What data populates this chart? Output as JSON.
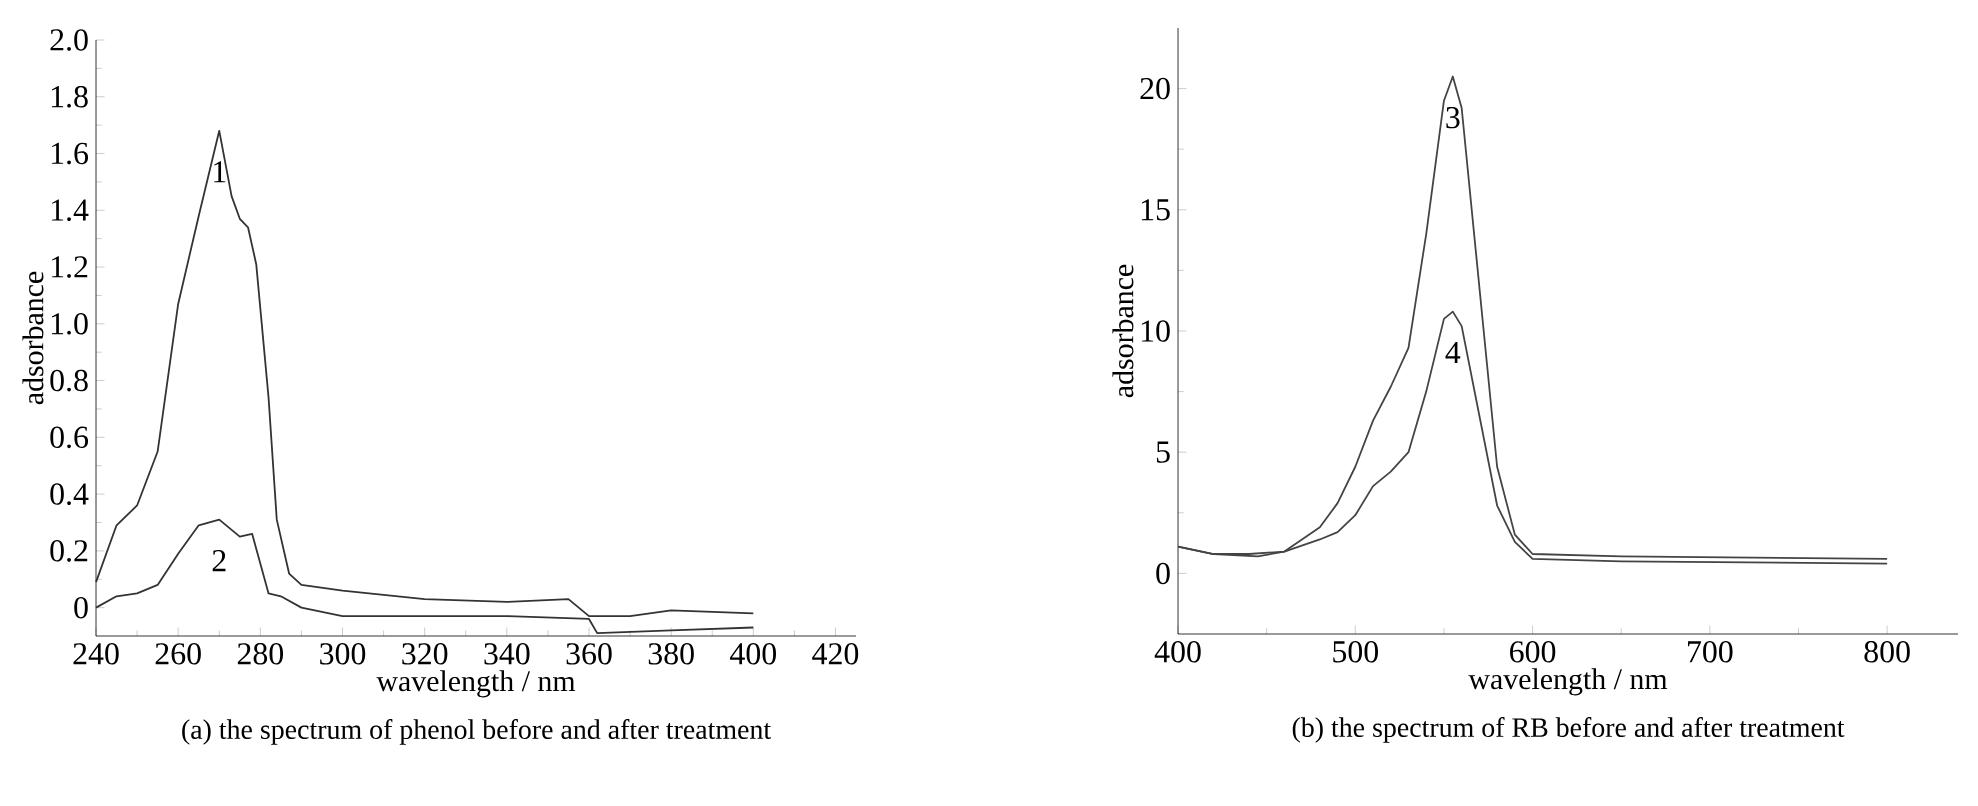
{
  "chart_data": [
    {
      "type": "line",
      "title": "(a) the spectrum of phenol before and after treatment",
      "xlabel": "wavelength / nm",
      "ylabel": "adsorbance",
      "xlim": [
        240,
        425
      ],
      "ylim": [
        -0.1,
        2.0
      ],
      "xticks": [
        240,
        260,
        280,
        300,
        320,
        340,
        360,
        380,
        400,
        420
      ],
      "yticks": [
        0,
        0.2,
        0.4,
        0.6,
        0.8,
        {
          "value": 1,
          "label": "1.0"
        },
        1.2,
        1.4,
        1.6,
        1.8,
        {
          "value": 2,
          "label": "2.0"
        }
      ],
      "series": [
        {
          "name": "1",
          "color": "#333333",
          "x": [
            240,
            245,
            250,
            255,
            260,
            265,
            270,
            273,
            275,
            277,
            279,
            282,
            284,
            287,
            290,
            300,
            320,
            340,
            355,
            360,
            370,
            380,
            400
          ],
          "values": [
            0.09,
            0.29,
            0.36,
            0.55,
            1.07,
            1.38,
            1.68,
            1.45,
            1.37,
            1.34,
            1.21,
            0.74,
            0.31,
            0.12,
            0.08,
            0.06,
            0.03,
            0.02,
            0.03,
            -0.03,
            -0.03,
            -0.01,
            -0.02
          ]
        },
        {
          "name": "2",
          "color": "#333333",
          "x": [
            240,
            245,
            250,
            255,
            260,
            265,
            270,
            275,
            278,
            282,
            285,
            290,
            300,
            320,
            340,
            360,
            362,
            380,
            400
          ],
          "values": [
            0.0,
            0.04,
            0.05,
            0.08,
            0.19,
            0.29,
            0.31,
            0.25,
            0.26,
            0.05,
            0.04,
            0.0,
            -0.03,
            -0.03,
            -0.03,
            -0.04,
            -0.09,
            -0.08,
            -0.07
          ]
        }
      ]
    },
    {
      "type": "line",
      "title": "(b) the spectrum of RB before and after treatment",
      "xlabel": "wavelength / nm",
      "ylabel": "adsorbance",
      "xlim": [
        400,
        840
      ],
      "ylim": [
        -2.5,
        22.5
      ],
      "xticks": [
        400,
        500,
        600,
        700,
        800
      ],
      "yticks": [
        0,
        5,
        10,
        15,
        20
      ],
      "series": [
        {
          "name": "3",
          "color": "#444444",
          "x": [
            400,
            420,
            440,
            460,
            480,
            490,
            500,
            510,
            520,
            530,
            540,
            550,
            555,
            560,
            570,
            580,
            590,
            600,
            650,
            800
          ],
          "values": [
            1.1,
            0.8,
            0.8,
            0.9,
            1.9,
            2.9,
            4.4,
            6.3,
            7.7,
            9.3,
            14.0,
            19.5,
            20.5,
            19.2,
            11.8,
            4.4,
            1.6,
            0.8,
            0.7,
            0.6
          ]
        },
        {
          "name": "4",
          "color": "#444444",
          "x": [
            400,
            420,
            445,
            460,
            480,
            490,
            500,
            510,
            520,
            530,
            540,
            550,
            555,
            560,
            570,
            580,
            590,
            600,
            650,
            800
          ],
          "values": [
            1.1,
            0.8,
            0.7,
            0.9,
            1.4,
            1.7,
            2.4,
            3.6,
            4.2,
            5.0,
            7.5,
            10.5,
            10.8,
            10.2,
            6.5,
            2.8,
            1.3,
            0.6,
            0.5,
            0.4
          ]
        }
      ]
    }
  ]
}
